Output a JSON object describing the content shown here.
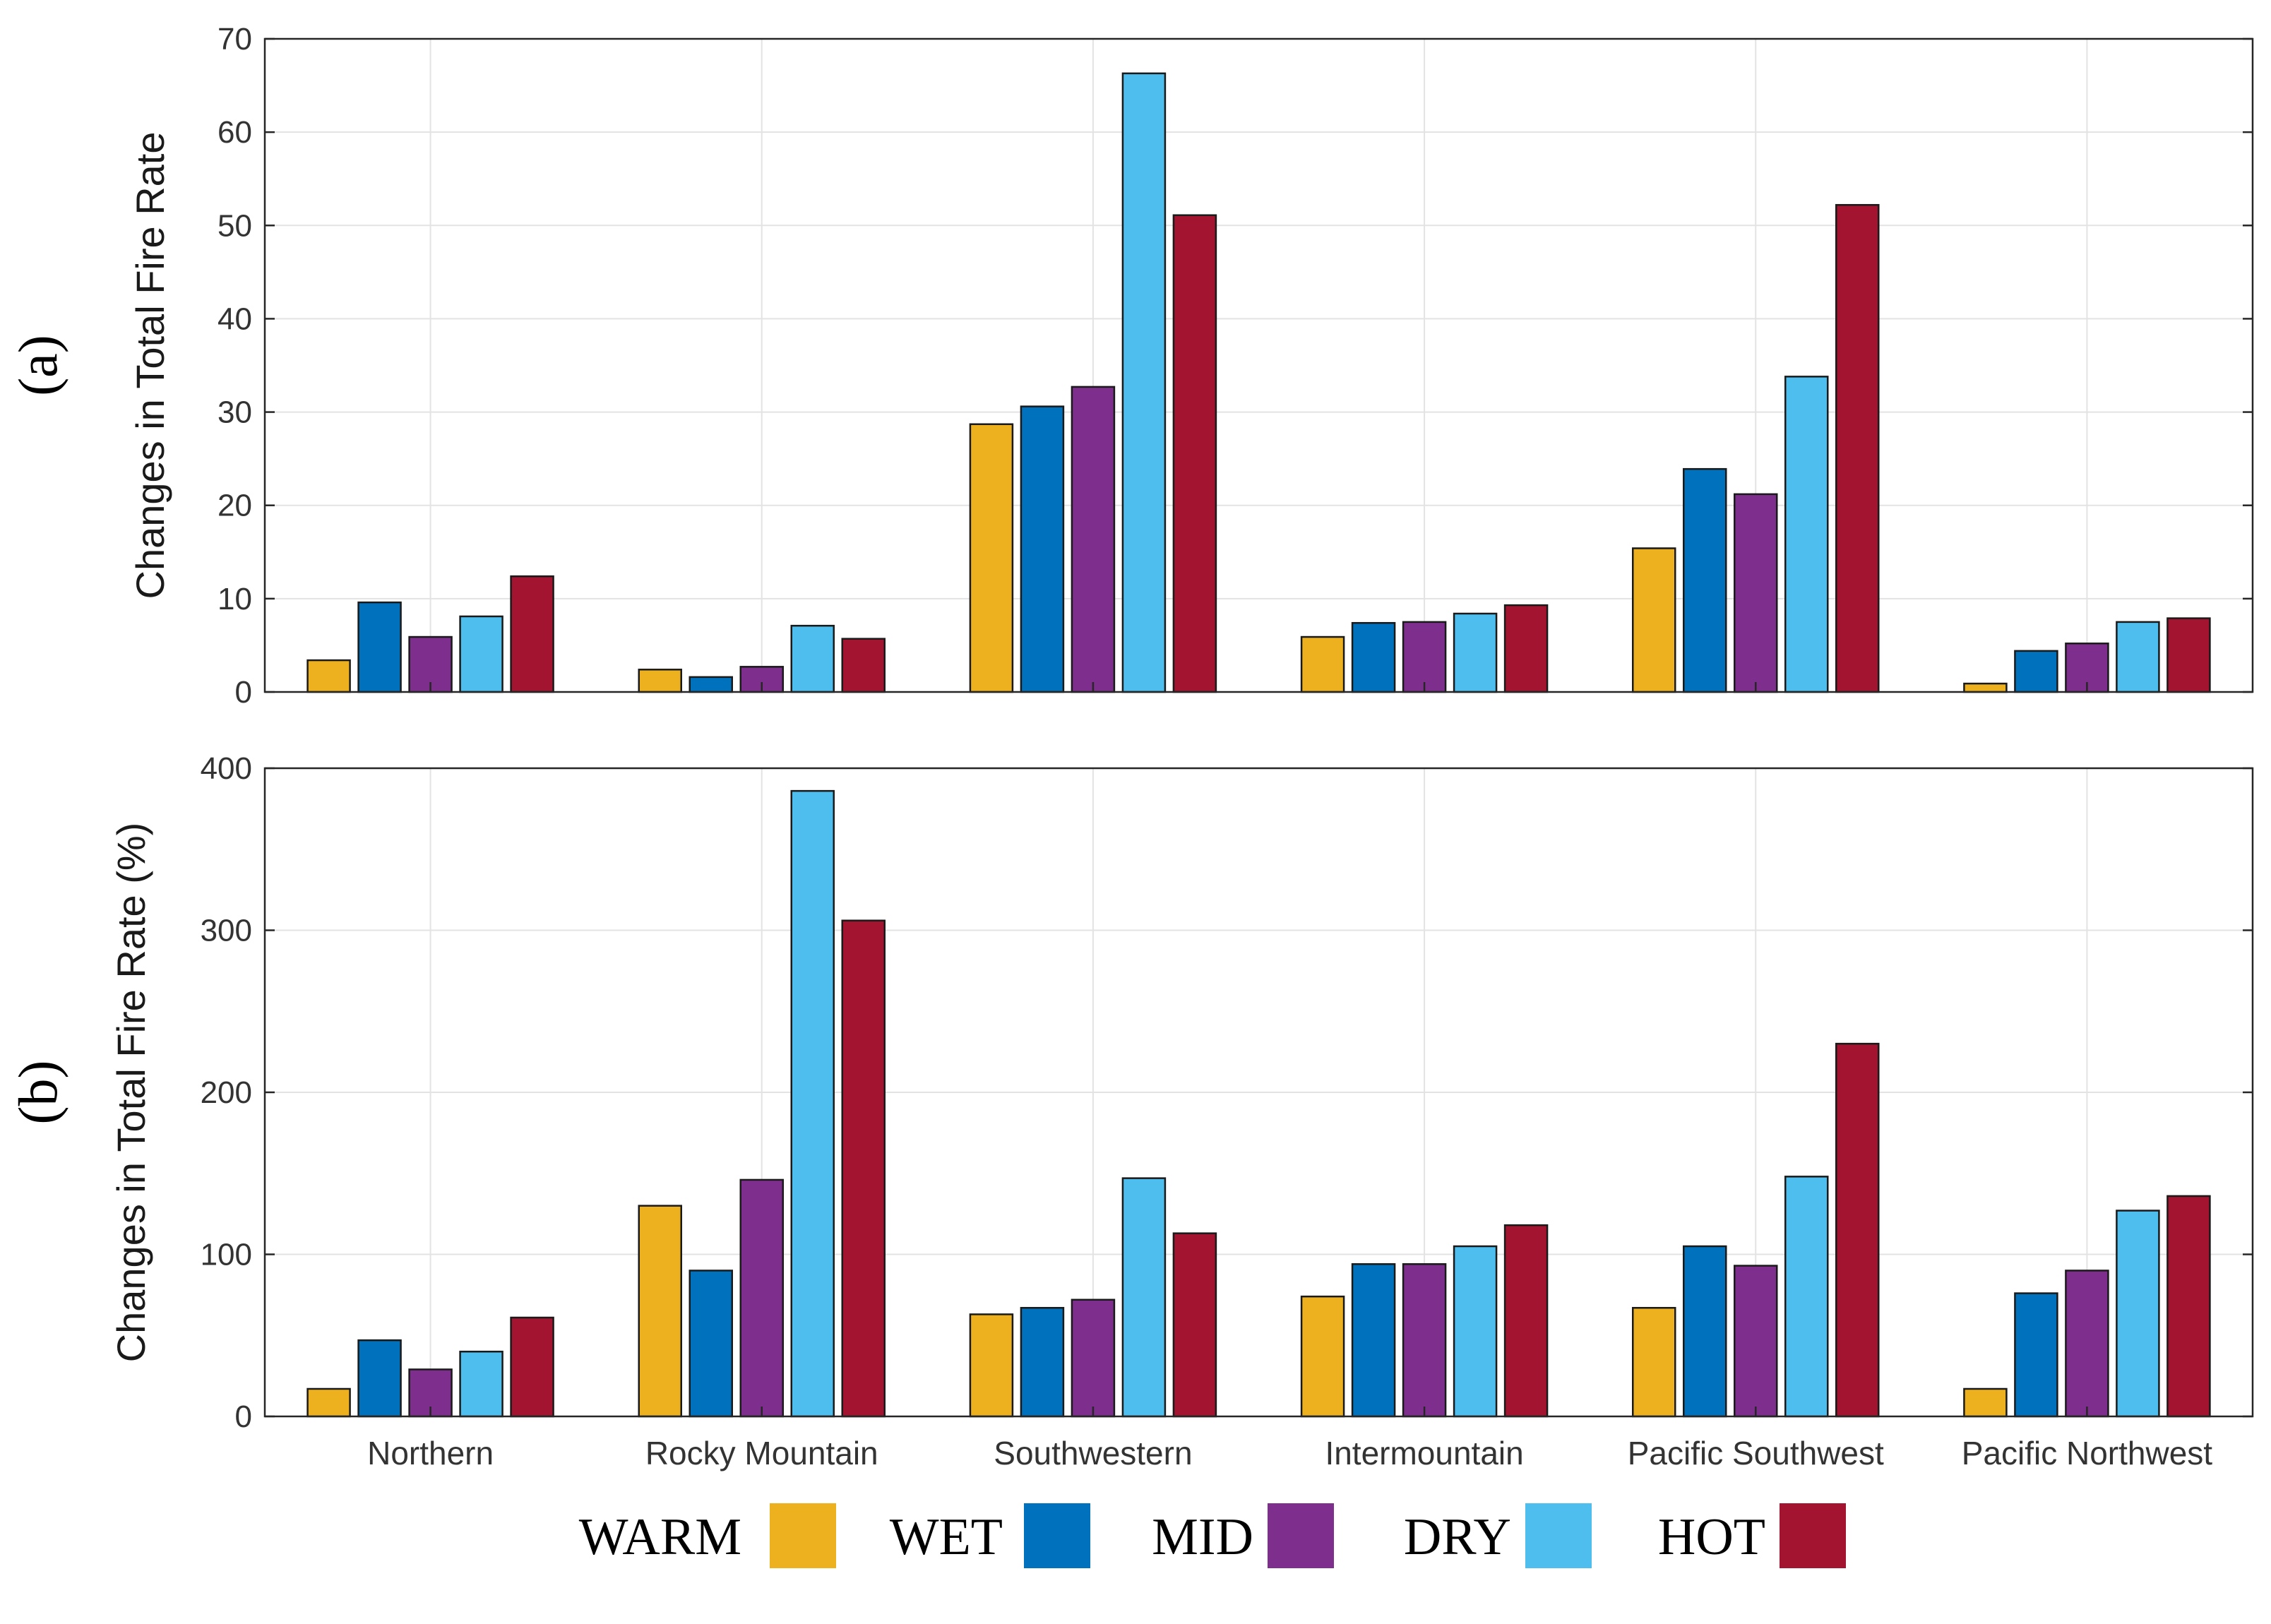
{
  "chart_data": [
    {
      "type": "bar",
      "panel_label": "(a)",
      "title": "",
      "xlabel": "",
      "ylabel": "Changes in Total Fire Rate",
      "ylim": [
        0,
        70
      ],
      "yticks": [
        0,
        10,
        20,
        30,
        40,
        50,
        60,
        70
      ],
      "grid": true,
      "categories": [
        "Northern",
        "Rocky Mountain",
        "Southwestern",
        "Intermountain",
        "Pacific Southwest",
        "Pacific Northwest"
      ],
      "show_category_labels": false,
      "series": [
        {
          "name": "WARM",
          "color": "#EDB120",
          "values": [
            3.4,
            2.4,
            28.7,
            5.9,
            15.4,
            0.9
          ]
        },
        {
          "name": "WET",
          "color": "#0072BD",
          "values": [
            9.6,
            1.6,
            30.6,
            7.4,
            23.9,
            4.4
          ]
        },
        {
          "name": "MID",
          "color": "#7E2F8E",
          "values": [
            5.9,
            2.7,
            32.7,
            7.5,
            21.2,
            5.2
          ]
        },
        {
          "name": "DRY",
          "color": "#4DBEEE",
          "values": [
            8.1,
            7.1,
            66.3,
            8.4,
            33.8,
            7.5
          ]
        },
        {
          "name": "HOT",
          "color": "#A2142F",
          "values": [
            12.4,
            5.7,
            51.1,
            9.3,
            52.2,
            7.9
          ]
        }
      ]
    },
    {
      "type": "bar",
      "panel_label": "(b)",
      "title": "",
      "xlabel": "",
      "ylabel": "Changes in Total Fire Rate (%)",
      "ylim": [
        0,
        400
      ],
      "yticks": [
        0,
        100,
        200,
        300,
        400
      ],
      "grid": true,
      "categories": [
        "Northern",
        "Rocky Mountain",
        "Southwestern",
        "Intermountain",
        "Pacific Southwest",
        "Pacific Northwest"
      ],
      "show_category_labels": true,
      "series": [
        {
          "name": "WARM",
          "color": "#EDB120",
          "values": [
            17,
            130,
            63,
            74,
            67,
            17
          ]
        },
        {
          "name": "WET",
          "color": "#0072BD",
          "values": [
            47,
            90,
            67,
            94,
            105,
            76
          ]
        },
        {
          "name": "MID",
          "color": "#7E2F8E",
          "values": [
            29,
            146,
            72,
            94,
            93,
            90
          ]
        },
        {
          "name": "DRY",
          "color": "#4DBEEE",
          "values": [
            40,
            386,
            147,
            105,
            148,
            127
          ]
        },
        {
          "name": "HOT",
          "color": "#A2142F",
          "values": [
            61,
            306,
            113,
            118,
            230,
            136
          ]
        }
      ]
    }
  ],
  "legend": {
    "placement": "bottom",
    "items": [
      {
        "label": "WARM",
        "color": "#EDB120"
      },
      {
        "label": "WET",
        "color": "#0072BD"
      },
      {
        "label": "MID",
        "color": "#7E2F8E"
      },
      {
        "label": "DRY",
        "color": "#4DBEEE"
      },
      {
        "label": "HOT",
        "color": "#A2142F"
      }
    ]
  }
}
